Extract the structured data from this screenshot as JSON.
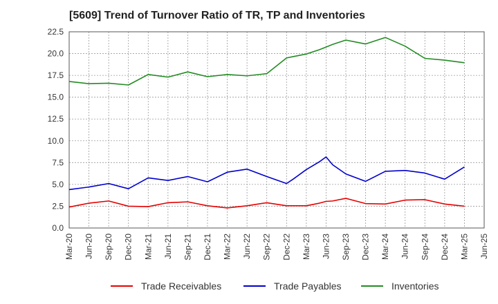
{
  "chart_data": {
    "type": "line",
    "title": "[5609]  Trend of Turnover Ratio of TR, TP and Inventories",
    "xlabel": "",
    "ylabel": "",
    "ylim": [
      0,
      22.5
    ],
    "yticks": [
      "0.0",
      "2.5",
      "5.0",
      "7.5",
      "10.0",
      "12.5",
      "15.0",
      "17.5",
      "20.0",
      "22.5"
    ],
    "xtick_labels": [
      "Mar-20",
      "Jun-20",
      "Sep-20",
      "Dec-20",
      "Mar-21",
      "Jun-21",
      "Sep-21",
      "Dec-21",
      "Mar-22",
      "Jun-22",
      "Sep-22",
      "Dec-22",
      "Mar-23",
      "Jun-23",
      "Sep-23",
      "Dec-23",
      "Mar-24",
      "Jun-24",
      "Sep-24",
      "Dec-24",
      "Mar-25",
      "Jun-25"
    ],
    "x": [
      "Mar-20",
      "Jun-20",
      "Sep-20",
      "Dec-20",
      "Mar-21",
      "Jun-21",
      "Sep-21",
      "Dec-21",
      "Mar-22",
      "Jun-22",
      "Sep-22",
      "Dec-22",
      "Jan-23",
      "Mar-23",
      "May-23",
      "Jun-23",
      "Jul-23",
      "Sep-23",
      "Dec-23",
      "Mar-24",
      "Jun-24",
      "Sep-24",
      "Dec-24",
      "Mar-25"
    ],
    "grid": true,
    "legend_position": "bottom",
    "series": [
      {
        "name": "Trade Receivables",
        "color": "#e60000",
        "values": [
          2.4,
          2.85,
          3.1,
          2.5,
          2.45,
          2.9,
          3.0,
          2.55,
          2.3,
          2.55,
          2.9,
          2.55,
          2.55,
          2.55,
          2.85,
          3.05,
          3.1,
          3.4,
          2.8,
          2.75,
          3.2,
          3.25,
          2.75,
          2.5
        ]
      },
      {
        "name": "Trade Payables",
        "color": "#0000cc",
        "values": [
          4.4,
          4.7,
          5.1,
          4.5,
          5.75,
          5.45,
          5.9,
          5.3,
          6.4,
          6.75,
          5.9,
          5.1,
          5.6,
          6.7,
          7.6,
          8.15,
          7.25,
          6.2,
          5.35,
          6.5,
          6.6,
          6.3,
          5.6,
          7.0
        ]
      },
      {
        "name": "Inventories",
        "color": "#228b22",
        "values": [
          16.8,
          16.55,
          16.6,
          16.4,
          17.6,
          17.3,
          17.9,
          17.35,
          17.6,
          17.45,
          17.7,
          19.5,
          19.65,
          19.95,
          20.45,
          20.75,
          21.05,
          21.55,
          21.1,
          21.85,
          20.85,
          19.45,
          19.25,
          18.95
        ]
      }
    ]
  }
}
